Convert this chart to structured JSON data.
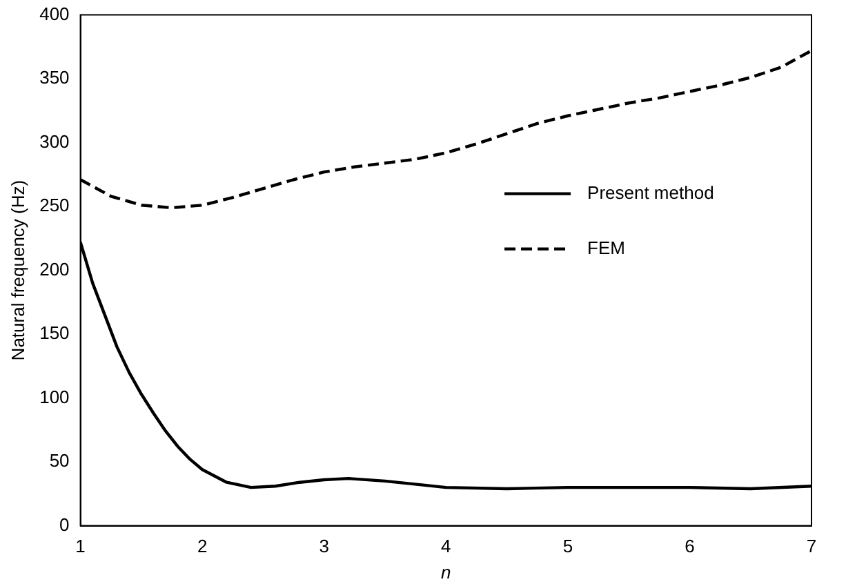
{
  "chart_data": {
    "type": "line",
    "xlabel": "n",
    "ylabel": "Natural frequency (Hz)",
    "xlim": [
      1,
      7
    ],
    "xticks": [
      1,
      2,
      3,
      4,
      5,
      6,
      7
    ],
    "ylim": [
      0,
      400
    ],
    "yticks": [
      0,
      50,
      100,
      150,
      200,
      250,
      300,
      350,
      400
    ],
    "grid": false,
    "legend": "right",
    "marker": "none",
    "series": [
      {
        "name": "Present method",
        "color": "#000000",
        "line_style": "solid",
        "x": [
          1,
          1.1,
          1.2,
          1.3,
          1.4,
          1.5,
          1.6,
          1.7,
          1.8,
          1.9,
          2,
          2.2,
          2.4,
          2.6,
          2.8,
          3,
          3.2,
          3.5,
          3.8,
          4,
          4.5,
          5,
          5.5,
          6,
          6.5,
          7
        ],
        "values": [
          222,
          190,
          165,
          140,
          120,
          103,
          88,
          74,
          62,
          52,
          44,
          34,
          30,
          31,
          34,
          36,
          37,
          35,
          32,
          30,
          29,
          30,
          30,
          30,
          29,
          31
        ]
      },
      {
        "name": "FEM",
        "color": "#000000",
        "line_style": "dashed",
        "x": [
          1,
          1.25,
          1.5,
          1.75,
          2,
          2.25,
          2.5,
          2.75,
          3,
          3.25,
          3.5,
          3.75,
          4,
          4.25,
          4.5,
          4.75,
          5,
          5.25,
          5.5,
          5.75,
          6,
          6.25,
          6.5,
          6.75,
          7
        ],
        "values": [
          271,
          258,
          251,
          249,
          251,
          257,
          264,
          271,
          277,
          281,
          284,
          287,
          292,
          299,
          307,
          315,
          321,
          326,
          331,
          335,
          340,
          345,
          351,
          359,
          372
        ]
      }
    ]
  }
}
